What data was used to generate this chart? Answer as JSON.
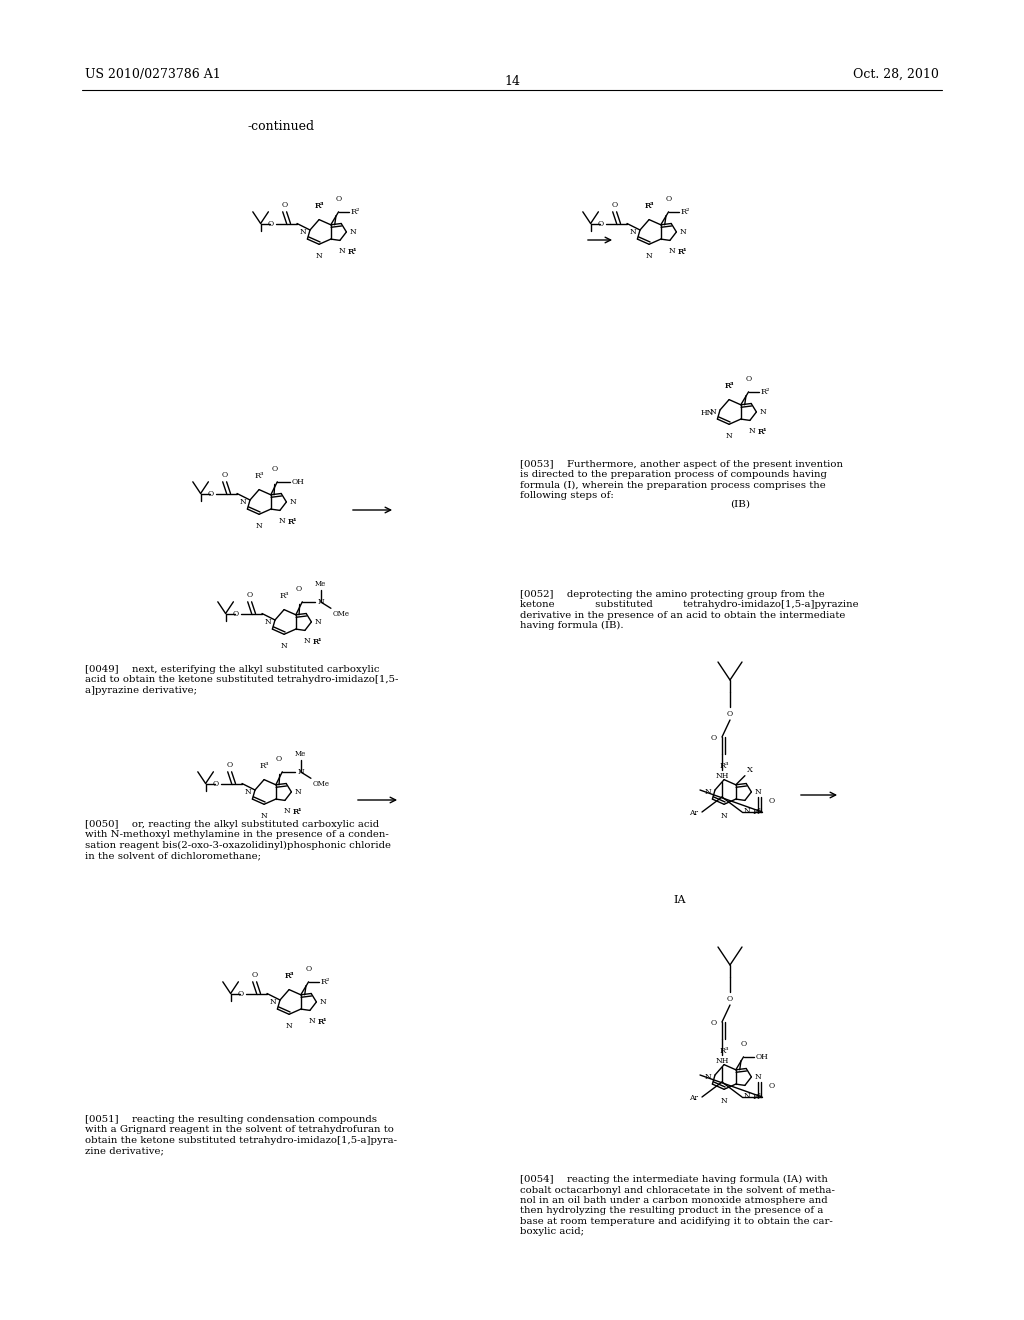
{
  "background_color": "#ffffff",
  "header_left": "US 2010/0273786 A1",
  "header_right": "Oct. 28, 2010",
  "page_number": "14",
  "para49": "[0049]  next, esterifying the alkyl substituted carboxylic\nacid to obtain the ketone substituted tetrahydro-imidazo[1,5-\na]pyrazine derivative;",
  "para50": "[0050]  or, reacting the alkyl substituted carboxylic acid\nwith N-methoxyl methylamine in the presence of a conden-\nsation reagent bis(2-oxo-3-oxazolidinyl)phosphonic chloride\nin the solvent of dichloromethane;",
  "para51": "[0051]  reacting the resulting condensation compounds\nwith a Grignard reagent in the solvent of tetrahydrofuran to\nobtain the ketone substituted tetrahydro-imidazo[1,5-a]pyra-\nzine derivative;",
  "para52": "[0052]  deprotecting the amino protecting group from the\nketone    substituted   tetrahydro-imidazo[1,5-a]pyrazine\nderivative in the presence of an acid to obtain the intermediate\nhaving formula (IB).",
  "para53": "[0053]  Furthermore, another aspect of the present invention\nis directed to the preparation process of compounds having\nformula (I), wherein the preparation process comprises the\nfollowing steps of:",
  "para54": "[0054]  reacting the intermediate having formula (IA) with\ncobalt octacarbonyl and chloracetate in the solvent of metha-\nnol in an oil bath under a carbon monoxide atmosphere and\nthen hydrolyzing the resulting product in the presence of a\nbase at room temperature and acidifying it to obtain the car-\nboxylic acid;"
}
